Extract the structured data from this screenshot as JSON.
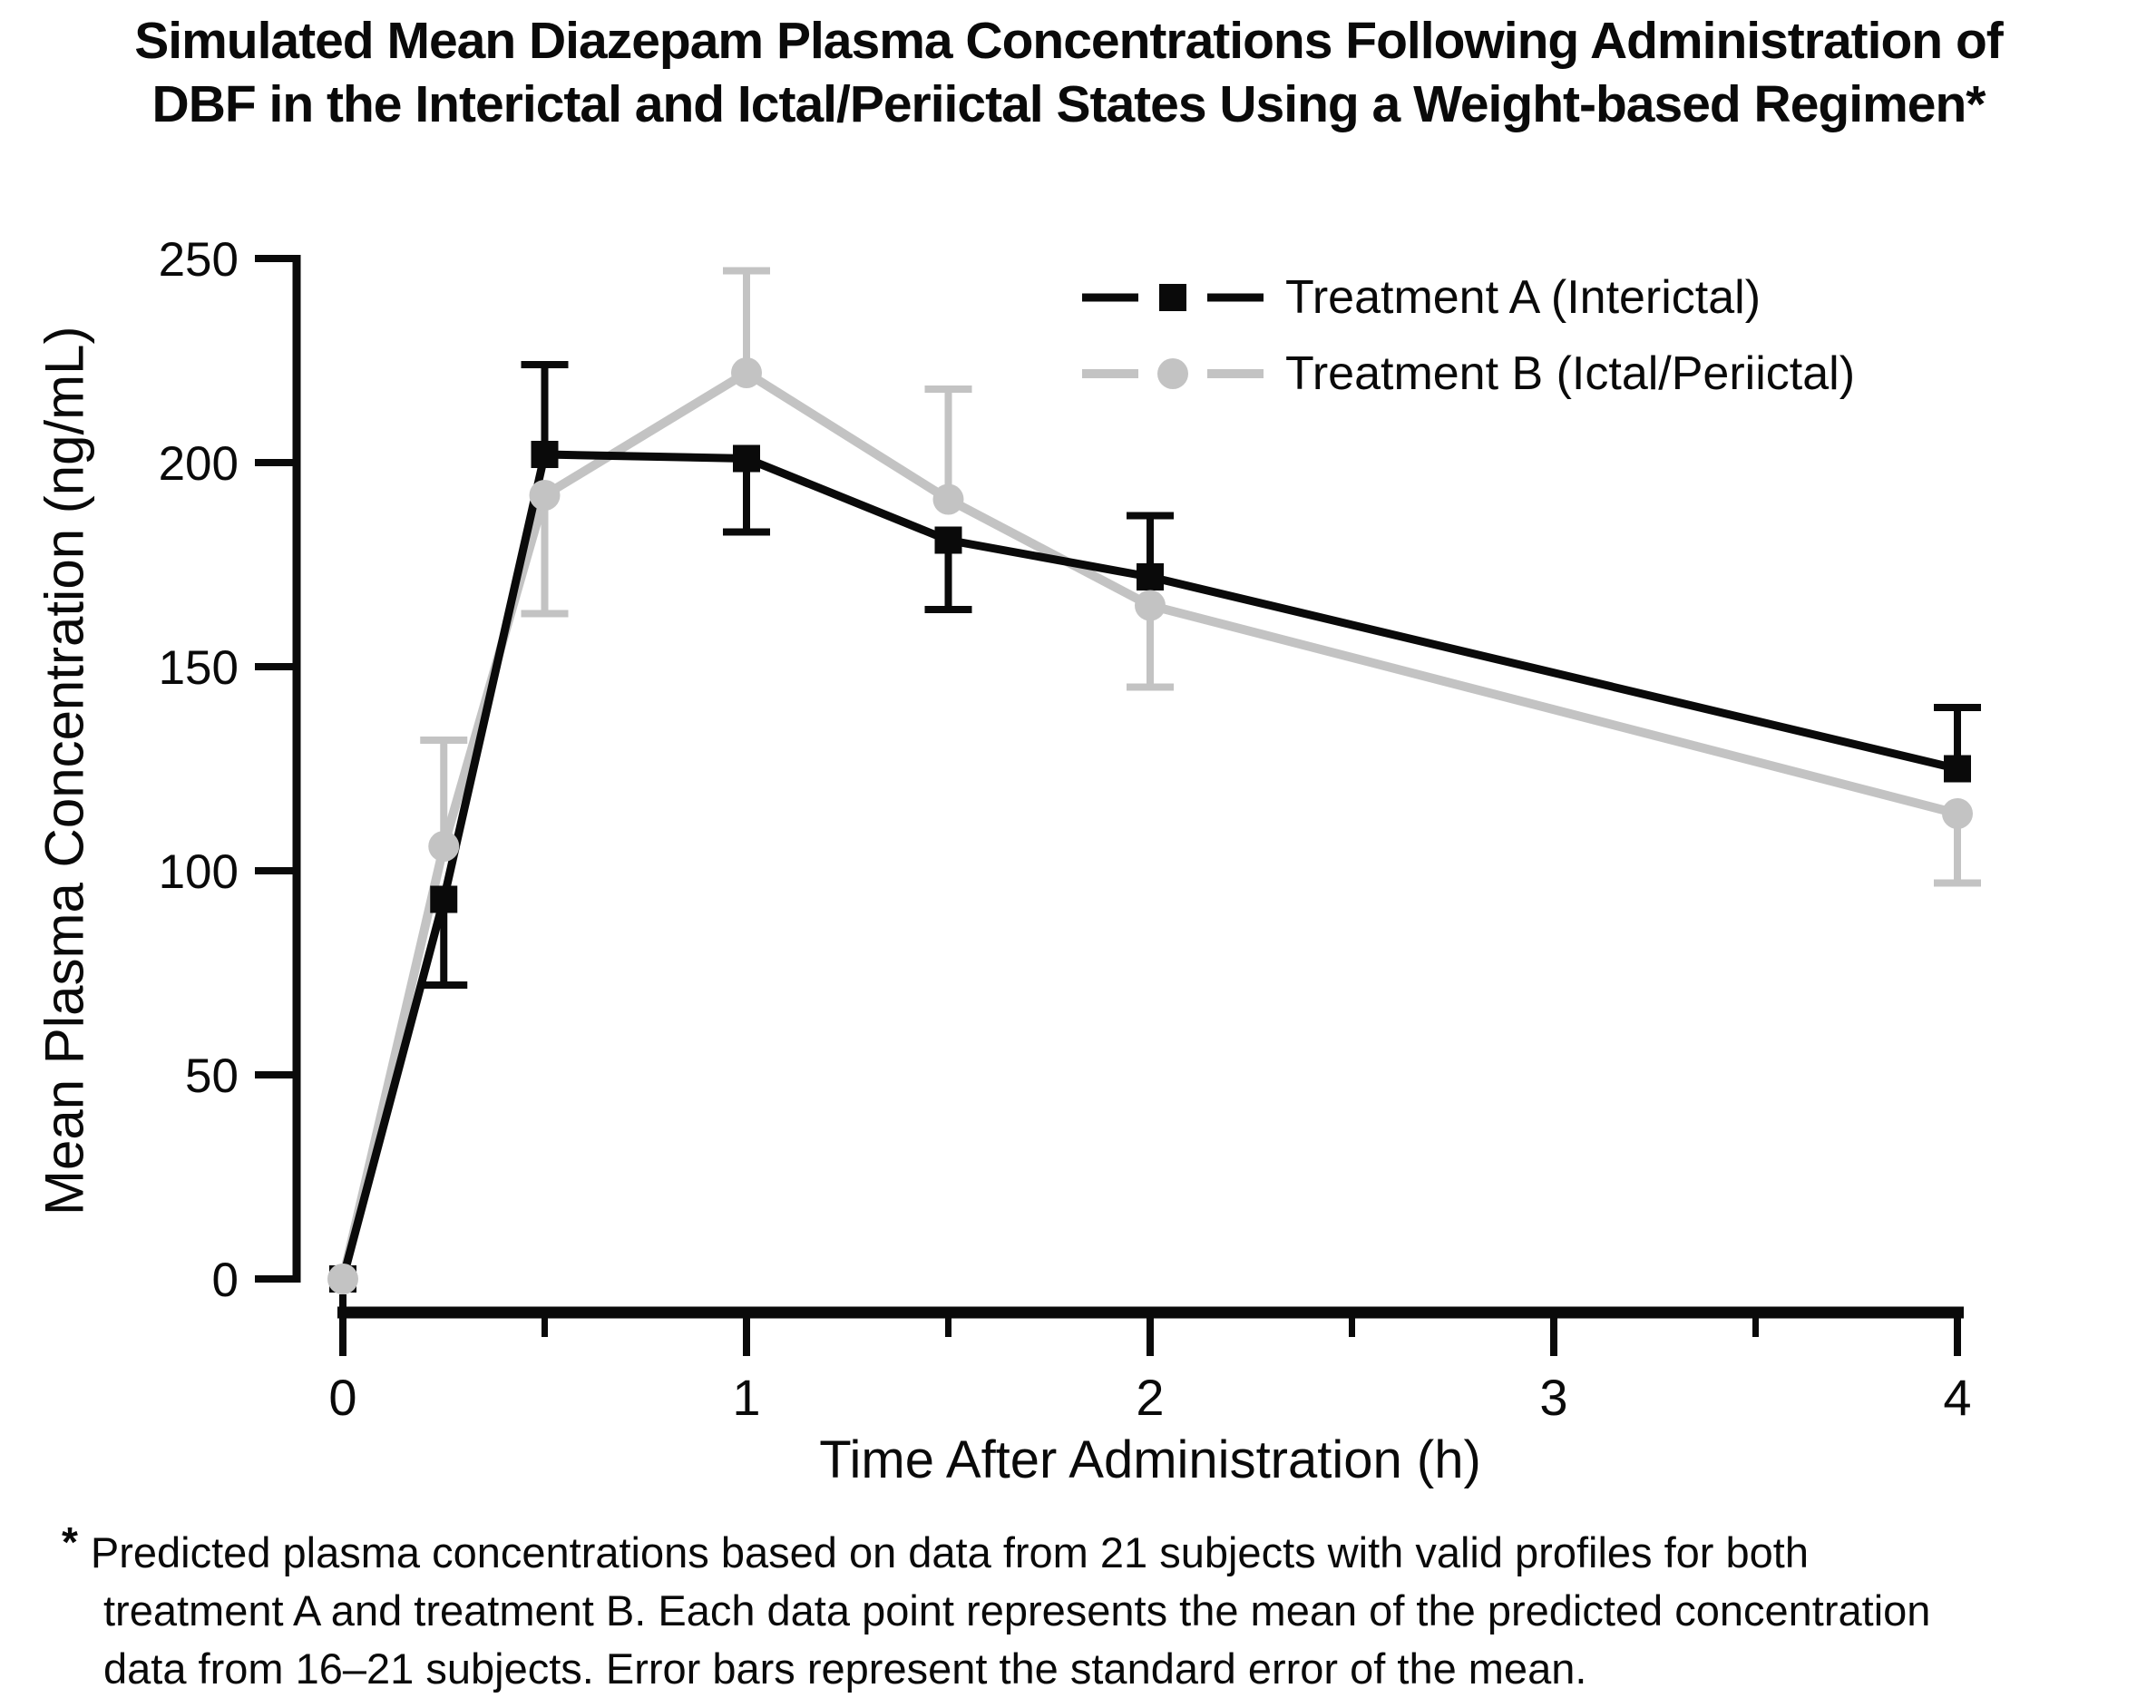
{
  "title": {
    "lines": [
      "Simulated Mean Diazepam Plasma Concentrations Following Administration of",
      "DBF in the Interictal and Ictal/Periictal States Using a Weight-based Regimen*"
    ]
  },
  "colors": {
    "ink": "#0a0a0a",
    "treatment_a": "#0a0a0a",
    "treatment_b": "#c3c3c3",
    "background": "#ffffff"
  },
  "chart_data": {
    "type": "line",
    "title": "Simulated Mean Diazepam Plasma Concentrations Following Administration of DBF in the Interictal and Ictal/Periictal States Using a Weight-based Regimen*",
    "xlabel": "Time After Administration (h)",
    "ylabel": "Mean Plasma Concentration (ng/mL)",
    "xlim": [
      0,
      4
    ],
    "ylim": [
      0,
      250
    ],
    "x_major_ticks": [
      0,
      1,
      2,
      3,
      4
    ],
    "x_major_tick_labels": [
      "0",
      "1",
      "2",
      "3",
      "4"
    ],
    "x_minor_ticks": [
      0.5,
      1.5,
      2.5,
      3.5
    ],
    "y_ticks": [
      0,
      50,
      100,
      150,
      200,
      250
    ],
    "y_tick_labels": [
      "0",
      "50",
      "100",
      "150",
      "200",
      "250"
    ],
    "grid": false,
    "legend_position": "top-right",
    "x": [
      0,
      0.25,
      0.5,
      1,
      1.5,
      2,
      4
    ],
    "series": [
      {
        "name": "Treatment A (Interictal)",
        "marker": "square",
        "color": "#0a0a0a",
        "values": [
          0,
          93,
          202,
          201,
          181,
          172,
          125
        ],
        "sem": [
          0,
          21,
          22,
          18,
          17,
          15,
          15
        ],
        "error_dir": [
          "none",
          "down",
          "up",
          "down",
          "down",
          "up",
          "up"
        ]
      },
      {
        "name": "Treatment B (Ictal/Periictal)",
        "marker": "circle",
        "color": "#c3c3c3",
        "values": [
          0,
          106,
          192,
          222,
          191,
          165,
          114
        ],
        "sem": [
          0,
          26,
          29,
          25,
          27,
          20,
          17
        ],
        "error_dir": [
          "none",
          "up",
          "down",
          "up",
          "up",
          "down",
          "down"
        ]
      }
    ],
    "error_note": "Error bars represent the standard error of the mean"
  },
  "footnote": {
    "marker": "*",
    "lines": [
      "Predicted plasma concentrations based on data from 21 subjects with valid profiles for both",
      "treatment A and treatment B. Each data point represents the mean of the predicted concentration",
      "data from 16–21 subjects. Error bars represent the standard error of the mean."
    ]
  }
}
